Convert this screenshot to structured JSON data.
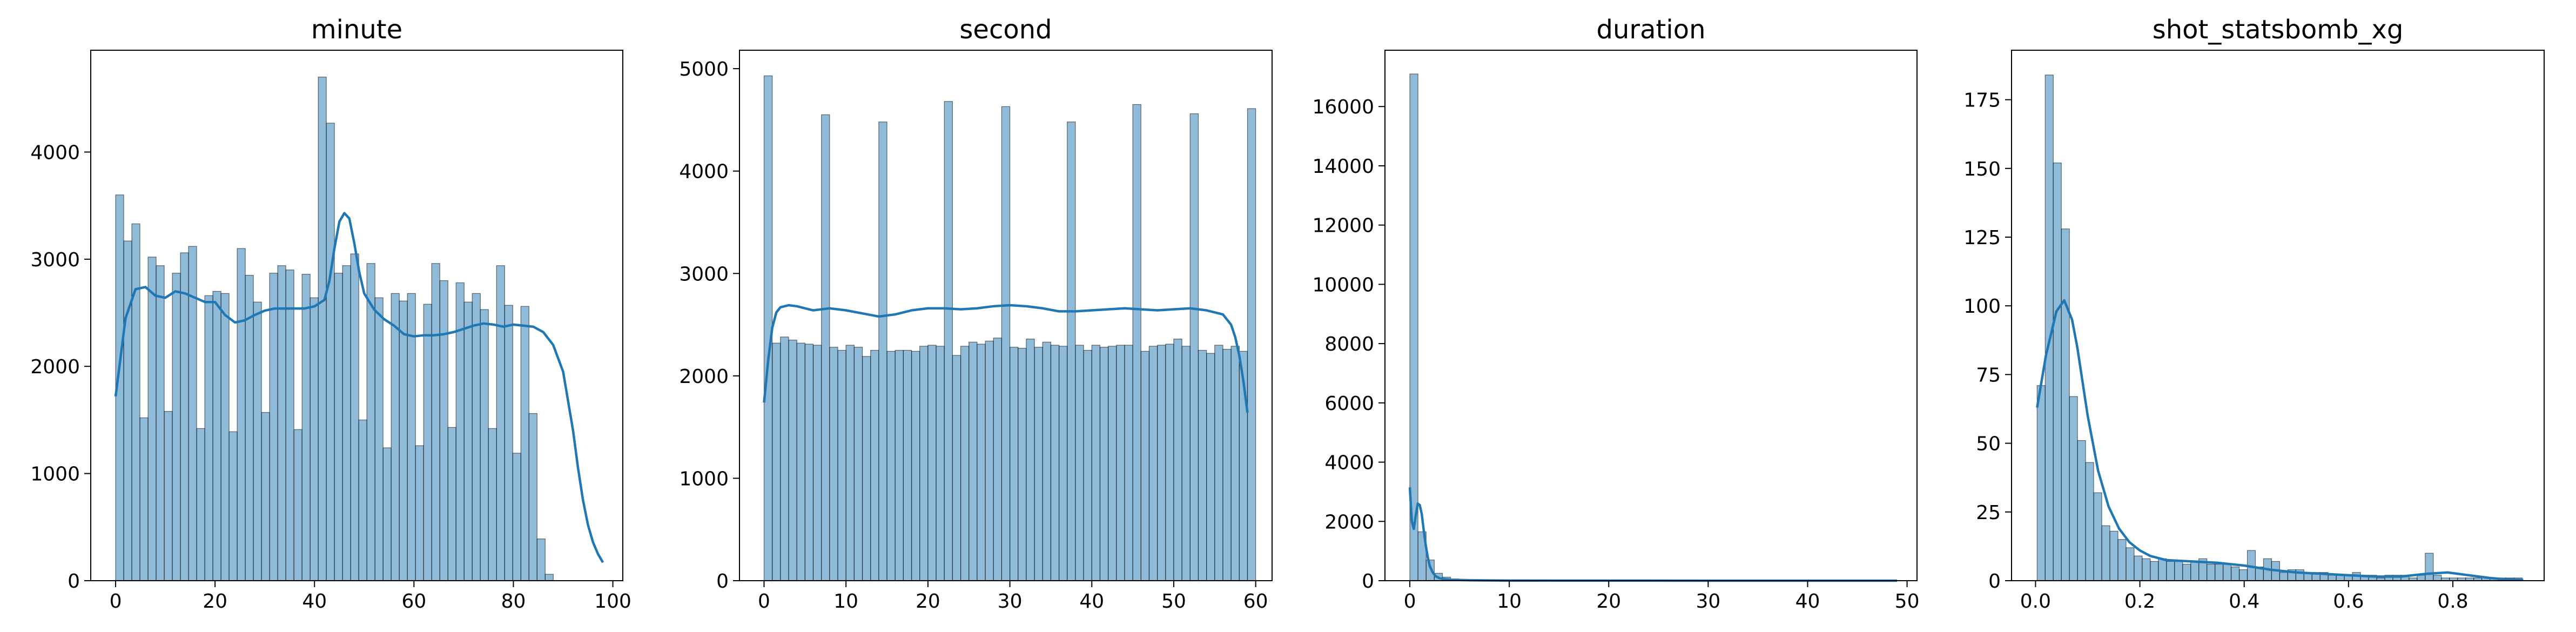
{
  "chart_data": [
    {
      "type": "bar",
      "title": "minute",
      "xlim": [
        -5,
        102
      ],
      "ylim": [
        0,
        4950
      ],
      "xticks": [
        0,
        20,
        40,
        60,
        80,
        100
      ],
      "yticks": [
        0,
        1000,
        2000,
        3000,
        4000
      ],
      "bar_color": "#1f77b4",
      "kde_color": "#1f77b4",
      "bin_start": 0,
      "bin_width": 1.63,
      "values": [
        3600,
        3170,
        3330,
        1520,
        3020,
        2940,
        1580,
        2870,
        3060,
        3120,
        1420,
        2660,
        2700,
        2680,
        1390,
        3100,
        2850,
        2600,
        1570,
        2870,
        2940,
        2900,
        1410,
        2860,
        2640,
        4700,
        4270,
        2870,
        2940,
        3050,
        1500,
        2960,
        2640,
        1240,
        2680,
        2610,
        2680,
        1260,
        2580,
        2960,
        2800,
        1430,
        2780,
        2600,
        2680,
        2530,
        1420,
        2940,
        2570,
        1190,
        2560,
        1560,
        390,
        60
      ],
      "kde": {
        "x": [
          0,
          2,
          4,
          6,
          8,
          10,
          12,
          14,
          16,
          18,
          20,
          22,
          24,
          26,
          28,
          30,
          32,
          34,
          36,
          38,
          40,
          42,
          43,
          44,
          45,
          46,
          47,
          48,
          49,
          50,
          52,
          54,
          56,
          58,
          60,
          62,
          64,
          66,
          68,
          70,
          72,
          74,
          76,
          78,
          80,
          82,
          84,
          86,
          88,
          90,
          92,
          93,
          94,
          95,
          96,
          97,
          98
        ],
        "y": [
          1720,
          2450,
          2720,
          2740,
          2660,
          2640,
          2700,
          2680,
          2640,
          2600,
          2600,
          2480,
          2410,
          2430,
          2480,
          2520,
          2540,
          2540,
          2540,
          2540,
          2560,
          2620,
          2800,
          3100,
          3350,
          3430,
          3380,
          3150,
          2880,
          2680,
          2530,
          2440,
          2380,
          2300,
          2280,
          2290,
          2290,
          2300,
          2320,
          2350,
          2380,
          2400,
          2390,
          2370,
          2390,
          2380,
          2370,
          2320,
          2200,
          1950,
          1400,
          1050,
          750,
          520,
          360,
          250,
          170
        ]
      }
    },
    {
      "type": "bar",
      "title": "second",
      "xlim": [
        -3,
        62
      ],
      "ylim": [
        0,
        5180
      ],
      "xticks": [
        0,
        10,
        20,
        30,
        40,
        50,
        60
      ],
      "yticks": [
        0,
        1000,
        2000,
        3000,
        4000,
        5000
      ],
      "bar_color": "#1f77b4",
      "kde_color": "#1f77b4",
      "bin_start": 0,
      "bin_width": 1.0,
      "values": [
        4930,
        2320,
        2380,
        2350,
        2320,
        2310,
        2300,
        4550,
        2280,
        2250,
        2300,
        2280,
        2190,
        2250,
        4480,
        2240,
        2250,
        2250,
        2240,
        2290,
        2300,
        2290,
        4680,
        2200,
        2290,
        2330,
        2310,
        2340,
        2370,
        4630,
        2280,
        2270,
        2360,
        2280,
        2330,
        2300,
        2290,
        4480,
        2300,
        2250,
        2300,
        2280,
        2290,
        2300,
        2300,
        4650,
        2240,
        2290,
        2300,
        2310,
        2360,
        2290,
        4560,
        2250,
        2220,
        2300,
        2260,
        2290,
        2240,
        4610
      ],
      "kde": {
        "x": [
          0,
          0.5,
          1,
          1.5,
          2,
          3,
          4,
          6,
          8,
          10,
          12,
          14,
          16,
          18,
          20,
          22,
          24,
          26,
          28,
          30,
          32,
          34,
          36,
          38,
          40,
          42,
          44,
          46,
          48,
          50,
          52,
          54,
          56,
          57,
          57.5,
          58,
          58.5,
          59
        ],
        "y": [
          1740,
          2150,
          2470,
          2620,
          2670,
          2690,
          2680,
          2640,
          2660,
          2640,
          2610,
          2580,
          2600,
          2640,
          2660,
          2660,
          2650,
          2660,
          2680,
          2690,
          2680,
          2660,
          2630,
          2630,
          2640,
          2650,
          2660,
          2650,
          2640,
          2650,
          2660,
          2640,
          2600,
          2500,
          2380,
          2200,
          1950,
          1640
        ]
      }
    },
    {
      "type": "bar",
      "title": "duration",
      "xlim": [
        -2.5,
        51
      ],
      "ylim": [
        0,
        17900
      ],
      "xticks": [
        0,
        10,
        20,
        30,
        40,
        50
      ],
      "yticks": [
        0,
        2000,
        4000,
        6000,
        8000,
        10000,
        12000,
        14000,
        16000
      ],
      "bar_color": "#1f77b4",
      "kde_color": "#1f77b4",
      "bin_start": 0,
      "bin_width": 0.82,
      "values": [
        17100,
        1650,
        700,
        250,
        120,
        60,
        40,
        30,
        20,
        15,
        12,
        10,
        8,
        6,
        5,
        4,
        4,
        3,
        3,
        2,
        2,
        2,
        2,
        2,
        1,
        1,
        1,
        1,
        1,
        1,
        1,
        1,
        1,
        1,
        1,
        1,
        1,
        1,
        1,
        1,
        1,
        1,
        1,
        1,
        1,
        1,
        1,
        1,
        1,
        1,
        1,
        1,
        1,
        1,
        1,
        1,
        1,
        1,
        1,
        1
      ],
      "kde": {
        "x": [
          0,
          0.2,
          0.4,
          0.6,
          0.8,
          1.0,
          1.2,
          1.4,
          1.6,
          1.8,
          2.0,
          2.3,
          2.6,
          3.0,
          3.5,
          4,
          5,
          6,
          8,
          10,
          15,
          20,
          30,
          40,
          49
        ],
        "y": [
          3150,
          2000,
          1750,
          2200,
          2600,
          2550,
          2250,
          1700,
          1200,
          800,
          500,
          280,
          150,
          80,
          50,
          35,
          22,
          15,
          9,
          5,
          3,
          2,
          1,
          1,
          0
        ]
      }
    },
    {
      "type": "bar",
      "title": "shot_statsbomb_xg",
      "xlim": [
        -0.046,
        0.975
      ],
      "ylim": [
        0,
        193
      ],
      "xticks": [
        0.0,
        0.2,
        0.4,
        0.6,
        0.8
      ],
      "xtick_labels": [
        "0.0",
        "0.2",
        "0.4",
        "0.6",
        "0.8"
      ],
      "yticks": [
        0,
        25,
        50,
        75,
        100,
        125,
        150,
        175
      ],
      "bar_color": "#1f77b4",
      "kde_color": "#1f77b4",
      "bin_start": 0.003,
      "bin_width": 0.0155,
      "values": [
        71,
        184,
        152,
        128,
        67,
        51,
        43,
        32,
        20,
        18,
        15,
        12,
        9,
        8,
        7,
        8,
        7,
        7,
        6,
        7,
        8,
        6,
        6,
        6,
        5,
        4,
        11,
        5,
        8,
        7,
        3,
        4,
        4,
        3,
        3,
        3,
        2,
        2,
        2,
        3,
        2,
        2,
        1,
        2,
        2,
        2,
        1,
        2,
        10,
        2,
        1,
        1,
        1,
        1,
        1,
        1,
        1,
        1,
        1,
        1
      ],
      "kde": {
        "x": [
          0.003,
          0.02,
          0.04,
          0.055,
          0.07,
          0.08,
          0.1,
          0.12,
          0.14,
          0.16,
          0.18,
          0.2,
          0.22,
          0.25,
          0.3,
          0.35,
          0.4,
          0.45,
          0.5,
          0.55,
          0.6,
          0.65,
          0.7,
          0.75,
          0.79,
          0.83,
          0.87,
          0.9,
          0.935
        ],
        "y": [
          63,
          82,
          98,
          102,
          95,
          85,
          60,
          40,
          27,
          19,
          14,
          11,
          9,
          7.5,
          7,
          6.5,
          5.5,
          4,
          3,
          2.5,
          2,
          1.5,
          1.5,
          2.5,
          3,
          2,
          1,
          0.5,
          0.3
        ]
      }
    }
  ]
}
